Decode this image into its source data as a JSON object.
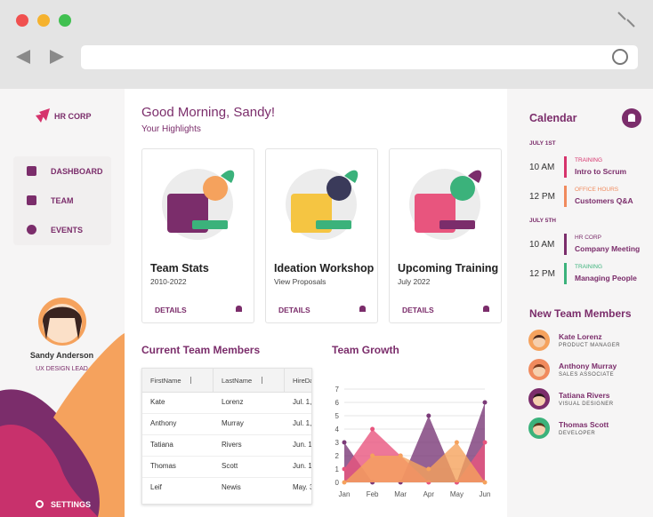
{
  "sidebar": {
    "brand": "HR CORP",
    "nav": [
      "DASHBOARD",
      "TEAM",
      "EVENTS"
    ],
    "profile": {
      "name": "Sandy Anderson",
      "role": "UX DESIGN LEAD"
    },
    "settings": "SETTINGS"
  },
  "main": {
    "greeting": "Good Morning, Sandy!",
    "subtitle": "Your Highlights",
    "cards": [
      {
        "title": "Team Stats",
        "subtitle": "2010-2022",
        "action": "DETAILS"
      },
      {
        "title": "Ideation Workshop",
        "subtitle": "View Proposals",
        "action": "DETAILS"
      },
      {
        "title": "Upcoming Training",
        "subtitle": "July 2022",
        "action": "DETAILS"
      }
    ],
    "table": {
      "title": "Current Team Members",
      "columns": [
        "FirstName",
        "LastName",
        "HireDa"
      ],
      "rows": [
        [
          "Kate",
          "Lorenz",
          "Jul. 1,"
        ],
        [
          "Anthony",
          "Murray",
          "Jul. 1,"
        ],
        [
          "Tatiana",
          "Rivers",
          "Jun. 1"
        ],
        [
          "Thomas",
          "Scott",
          "Jun. 1"
        ],
        [
          "Leif",
          "Newis",
          "May. 3"
        ]
      ]
    }
  },
  "chart_data": {
    "type": "area",
    "title": "Team Growth",
    "categories": [
      "Jan",
      "Feb",
      "Mar",
      "Apr",
      "May",
      "Jun"
    ],
    "series": [
      {
        "color": "#7b3a78",
        "values": [
          3,
          0,
          0,
          5,
          0,
          6
        ]
      },
      {
        "color": "#e8557e",
        "values": [
          1,
          4,
          2,
          0,
          0,
          3
        ]
      },
      {
        "color": "#f5a25d",
        "values": [
          0,
          2,
          2,
          1,
          3,
          0
        ]
      }
    ],
    "ylim": [
      0,
      7
    ],
    "yticks": [
      0,
      1,
      2,
      3,
      4,
      5,
      6,
      7
    ],
    "grid": true
  },
  "calendar": {
    "title": "Calendar",
    "days": [
      {
        "date": "JULY 1ST",
        "events": [
          {
            "time": "10 AM",
            "category": "TRAINING",
            "title": "Intro to Scrum",
            "color": "#d6336c"
          },
          {
            "time": "12 PM",
            "category": "OFFICE HOURS",
            "title": "Customers Q&A",
            "color": "#f08a5d"
          }
        ]
      },
      {
        "date": "JULY 5TH",
        "events": [
          {
            "time": "10 AM",
            "category": "HR CORP",
            "title": "Company Meeting",
            "color": "#7b2d6b"
          },
          {
            "time": "12 PM",
            "category": "TRAINING",
            "title": "Managing People",
            "color": "#3bb27b"
          }
        ]
      }
    ]
  },
  "new_members": {
    "title": "New Team Members",
    "members": [
      {
        "name": "Kate Lorenz",
        "role": "PRODUCT MANAGER"
      },
      {
        "name": "Anthony Murray",
        "role": "SALES ASSOCIATE"
      },
      {
        "name": "Tatiana Rivers",
        "role": "VISUAL DESIGNER"
      },
      {
        "name": "Thomas Scott",
        "role": "DEVELOPER"
      }
    ]
  }
}
